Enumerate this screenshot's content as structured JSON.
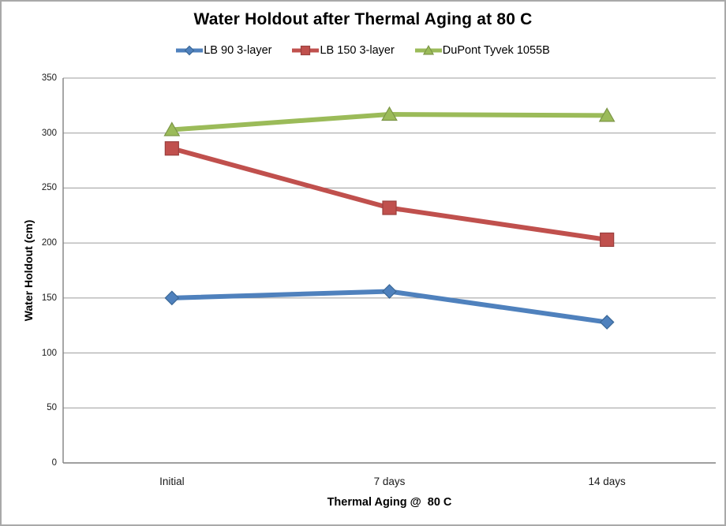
{
  "window": {
    "background": "#FFFFFF",
    "border_color": "#A9A9A9"
  },
  "chart_data": {
    "type": "line",
    "title": "Water Holdout after Thermal Aging at 80 C",
    "xlabel": "Thermal Aging @  80 C",
    "ylabel": "Water Holdout (cm)",
    "categories": [
      "Initial",
      "7 days",
      "14 days"
    ],
    "series": [
      {
        "name": "LB 90 3-layer",
        "color": "#4F81BD",
        "edge_color": "#3A6796",
        "marker": "diamond",
        "values": [
          150,
          156,
          128
        ]
      },
      {
        "name": "LB 150 3-layer",
        "color": "#C0504D",
        "edge_color": "#9A403E",
        "marker": "square",
        "values": [
          286,
          232,
          203
        ]
      },
      {
        "name": "DuPont Tyvek 1055B",
        "color": "#9BBB59",
        "edge_color": "#7C9647",
        "marker": "triangle",
        "values": [
          303,
          317,
          316
        ]
      }
    ],
    "ylim": [
      0,
      350
    ],
    "ytick_step": 50,
    "yticks": [
      0,
      50,
      100,
      150,
      200,
      250,
      300,
      350
    ],
    "grid": true,
    "legend_position": "top",
    "gridline_color": "#9C9C9C",
    "axis_color": "#808080"
  }
}
